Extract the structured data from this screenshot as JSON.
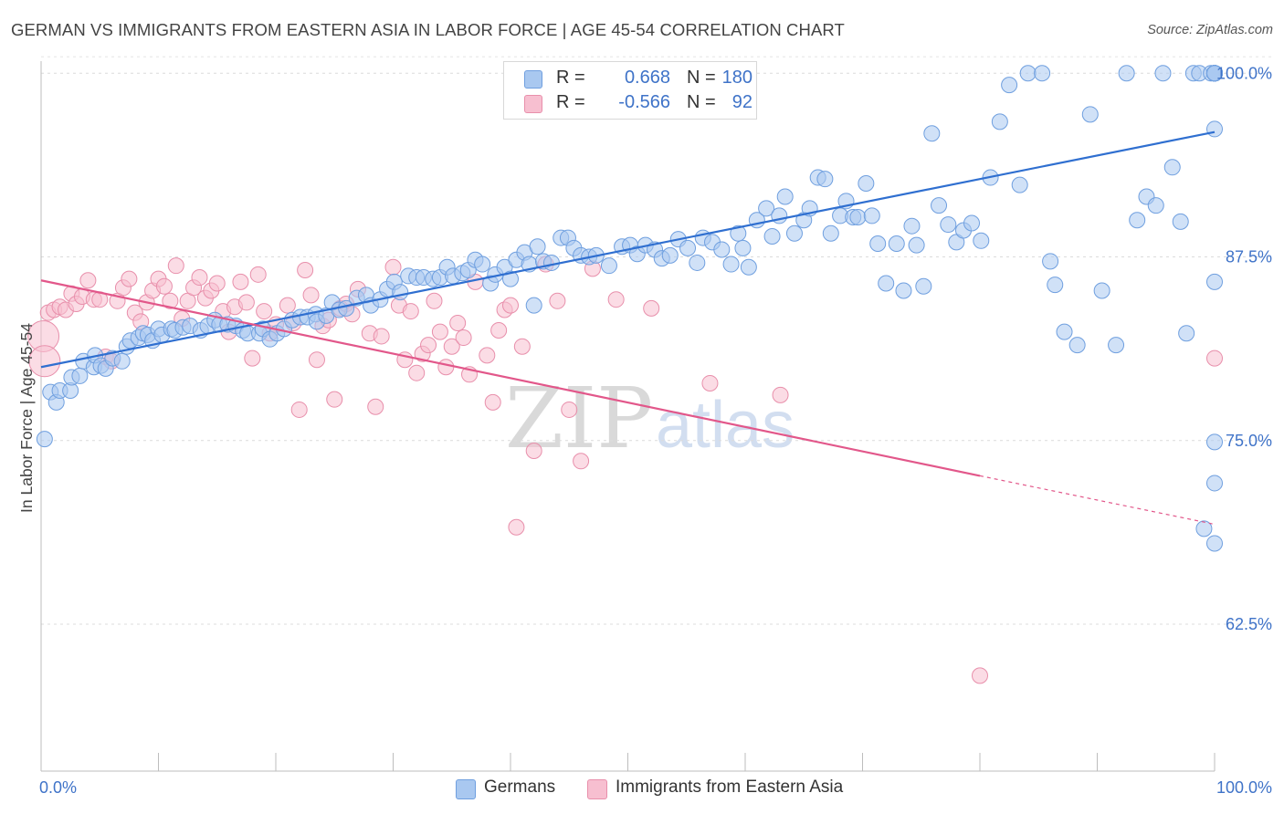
{
  "header": {
    "title": "GERMAN VS IMMIGRANTS FROM EASTERN ASIA IN LABOR FORCE | AGE 45-54 CORRELATION CHART",
    "source": "Source: ZipAtlas.com"
  },
  "watermark": {
    "zip": "ZIP",
    "atlas": "atlas"
  },
  "legend": {
    "rows": [
      {
        "r_label": "R =",
        "r_value": "0.668",
        "n_label": "N =",
        "n_value": "180",
        "color": "#a9c8f0",
        "border": "#6f9fdf"
      },
      {
        "r_label": "R =",
        "r_value": "-0.566",
        "n_label": "N =",
        "n_value": "92",
        "color": "#f7bfd0",
        "border": "#e88fab"
      }
    ]
  },
  "bottom_legend": {
    "germans": "Germans",
    "immigrants": "Immigrants from Eastern Asia"
  },
  "chart_data": {
    "type": "scatter",
    "title": "GERMAN VS IMMIGRANTS FROM EASTERN ASIA IN LABOR FORCE | AGE 45-54 CORRELATION CHART",
    "ylabel": "In Labor Force | Age 45-54",
    "xlabel": "",
    "xlim": [
      0,
      100
    ],
    "ylim": [
      52.5,
      102.5
    ],
    "y_ticks": [
      {
        "value": 100.0,
        "label": "100.0%"
      },
      {
        "value": 87.5,
        "label": "87.5%"
      },
      {
        "value": 75.0,
        "label": "75.0%"
      },
      {
        "value": 62.5,
        "label": "62.5%"
      }
    ],
    "x_tick_labels": {
      "left": "0.0%",
      "right": "100.0%"
    },
    "grid": "dashed horizontal",
    "legend_placement": "top-center",
    "colors": {
      "germans_fill": "#a9c8f0",
      "germans_stroke": "#6f9fdf",
      "germans_line": "#2f6fd0",
      "immigrants_fill": "#f7bfd0",
      "immigrants_stroke": "#e88fab",
      "immigrants_line": "#e2578a",
      "axis_text": "#3f73c8"
    },
    "series": [
      {
        "name": "Germans",
        "r": 0.668,
        "n": 180,
        "trend": {
          "x": [
            0,
            100
          ],
          "y": [
            80.0,
            96.0
          ]
        },
        "points": [
          [
            0.3,
            75.1
          ],
          [
            0.8,
            78.3
          ],
          [
            1.3,
            77.6
          ],
          [
            1.6,
            78.4
          ],
          [
            2.5,
            78.4
          ],
          [
            2.6,
            79.3
          ],
          [
            3.3,
            79.4
          ],
          [
            3.6,
            80.4
          ],
          [
            4.5,
            80.0
          ],
          [
            4.6,
            80.8
          ],
          [
            5.1,
            80.1
          ],
          [
            5.5,
            79.9
          ],
          [
            6.1,
            80.6
          ],
          [
            6.9,
            80.4
          ],
          [
            7.3,
            81.4
          ],
          [
            7.6,
            81.8
          ],
          [
            8.3,
            82.0
          ],
          [
            8.7,
            82.3
          ],
          [
            9.1,
            82.2
          ],
          [
            9.5,
            81.8
          ],
          [
            10.0,
            82.6
          ],
          [
            10.3,
            82.2
          ],
          [
            11.1,
            82.6
          ],
          [
            11.4,
            82.5
          ],
          [
            12.1,
            82.7
          ],
          [
            12.7,
            82.8
          ],
          [
            13.6,
            82.5
          ],
          [
            14.2,
            82.8
          ],
          [
            14.8,
            83.2
          ],
          [
            15.2,
            82.9
          ],
          [
            15.9,
            82.9
          ],
          [
            16.6,
            82.8
          ],
          [
            17.2,
            82.5
          ],
          [
            17.6,
            82.3
          ],
          [
            18.6,
            82.3
          ],
          [
            18.9,
            82.6
          ],
          [
            19.5,
            81.9
          ],
          [
            20.1,
            82.3
          ],
          [
            20.7,
            82.6
          ],
          [
            21.4,
            83.2
          ],
          [
            22.1,
            83.4
          ],
          [
            22.7,
            83.4
          ],
          [
            23.4,
            83.6
          ],
          [
            23.5,
            83.1
          ],
          [
            24.3,
            83.5
          ],
          [
            24.8,
            84.4
          ],
          [
            25.4,
            83.9
          ],
          [
            26.0,
            84.0
          ],
          [
            26.9,
            84.7
          ],
          [
            27.7,
            84.9
          ],
          [
            28.1,
            84.2
          ],
          [
            28.9,
            84.6
          ],
          [
            29.5,
            85.3
          ],
          [
            30.1,
            85.8
          ],
          [
            30.6,
            85.1
          ],
          [
            31.3,
            86.2
          ],
          [
            32.0,
            86.1
          ],
          [
            32.6,
            86.1
          ],
          [
            33.4,
            86.0
          ],
          [
            34.0,
            86.1
          ],
          [
            34.6,
            86.8
          ],
          [
            35.1,
            86.2
          ],
          [
            35.9,
            86.4
          ],
          [
            36.4,
            86.6
          ],
          [
            37.0,
            87.3
          ],
          [
            37.6,
            87.0
          ],
          [
            38.3,
            85.7
          ],
          [
            38.7,
            86.3
          ],
          [
            39.5,
            86.8
          ],
          [
            40.0,
            86.0
          ],
          [
            40.5,
            87.3
          ],
          [
            41.2,
            87.8
          ],
          [
            41.6,
            87.0
          ],
          [
            42.0,
            84.2
          ],
          [
            42.3,
            88.2
          ],
          [
            42.8,
            87.2
          ],
          [
            43.5,
            87.1
          ],
          [
            44.3,
            88.8
          ],
          [
            44.9,
            88.8
          ],
          [
            45.4,
            88.1
          ],
          [
            46.0,
            87.6
          ],
          [
            46.7,
            87.5
          ],
          [
            47.3,
            87.6
          ],
          [
            48.4,
            86.9
          ],
          [
            49.5,
            88.2
          ],
          [
            50.2,
            88.3
          ],
          [
            50.8,
            87.7
          ],
          [
            51.5,
            88.3
          ],
          [
            52.3,
            88.0
          ],
          [
            52.9,
            87.4
          ],
          [
            53.6,
            87.6
          ],
          [
            54.3,
            88.7
          ],
          [
            55.1,
            88.1
          ],
          [
            55.9,
            87.1
          ],
          [
            56.4,
            88.8
          ],
          [
            57.2,
            88.5
          ],
          [
            58.0,
            88.0
          ],
          [
            58.8,
            87.0
          ],
          [
            59.4,
            89.1
          ],
          [
            59.8,
            88.1
          ],
          [
            60.3,
            86.8
          ],
          [
            61.0,
            90.0
          ],
          [
            61.8,
            90.8
          ],
          [
            62.3,
            88.9
          ],
          [
            62.9,
            90.3
          ],
          [
            63.4,
            91.6
          ],
          [
            64.2,
            89.1
          ],
          [
            65.0,
            90.0
          ],
          [
            65.5,
            90.8
          ],
          [
            66.2,
            92.9
          ],
          [
            66.8,
            92.8
          ],
          [
            67.3,
            89.1
          ],
          [
            68.1,
            90.3
          ],
          [
            68.6,
            91.3
          ],
          [
            69.2,
            90.2
          ],
          [
            69.6,
            90.2
          ],
          [
            70.3,
            92.5
          ],
          [
            70.8,
            90.3
          ],
          [
            71.3,
            88.4
          ],
          [
            72.0,
            85.7
          ],
          [
            72.9,
            88.4
          ],
          [
            73.5,
            85.2
          ],
          [
            74.2,
            89.6
          ],
          [
            74.6,
            88.3
          ],
          [
            75.2,
            85.5
          ],
          [
            75.9,
            95.9
          ],
          [
            76.5,
            91.0
          ],
          [
            77.3,
            89.7
          ],
          [
            78.0,
            88.5
          ],
          [
            78.6,
            89.3
          ],
          [
            79.3,
            89.8
          ],
          [
            80.1,
            88.6
          ],
          [
            80.9,
            92.9
          ],
          [
            81.7,
            96.7
          ],
          [
            82.5,
            99.2
          ],
          [
            83.4,
            92.4
          ],
          [
            84.1,
            100.0
          ],
          [
            85.3,
            100.0
          ],
          [
            86.0,
            87.2
          ],
          [
            86.4,
            85.6
          ],
          [
            87.2,
            82.4
          ],
          [
            88.3,
            81.5
          ],
          [
            89.4,
            97.2
          ],
          [
            90.4,
            85.2
          ],
          [
            91.6,
            81.5
          ],
          [
            92.5,
            100.0
          ],
          [
            93.4,
            90.0
          ],
          [
            94.2,
            91.6
          ],
          [
            95.0,
            91.0
          ],
          [
            95.6,
            100.0
          ],
          [
            96.4,
            93.6
          ],
          [
            97.1,
            89.9
          ],
          [
            97.6,
            82.3
          ],
          [
            98.2,
            100.0
          ],
          [
            98.7,
            100.0
          ],
          [
            99.1,
            69.0
          ],
          [
            99.7,
            100.0
          ],
          [
            100.0,
            100.0
          ],
          [
            100.0,
            100.0
          ],
          [
            100.0,
            100.0
          ],
          [
            100.0,
            100.0
          ],
          [
            100.0,
            100.0
          ],
          [
            100.0,
            96.2
          ],
          [
            100.0,
            100.0
          ],
          [
            100.0,
            100.0
          ],
          [
            100.0,
            100.0
          ],
          [
            100.0,
            100.0
          ],
          [
            100.0,
            100.0
          ],
          [
            100.0,
            100.0
          ],
          [
            100.0,
            100.0
          ],
          [
            100.0,
            100.0
          ],
          [
            100.0,
            100.0
          ],
          [
            100.0,
            100.0
          ],
          [
            100.0,
            100.0
          ],
          [
            100.0,
            100.0
          ],
          [
            100.0,
            100.0
          ],
          [
            100.0,
            100.0
          ],
          [
            100.0,
            85.8
          ],
          [
            100.0,
            100.0
          ],
          [
            100.0,
            74.9
          ],
          [
            100.0,
            72.1
          ],
          [
            100.0,
            68.0
          ],
          [
            100.0,
            100.0
          ],
          [
            100.0,
            100.0
          ],
          [
            100.0,
            100.0
          ],
          [
            100.0,
            100.0
          ],
          [
            100.0,
            100.0
          ],
          [
            100.0,
            100.0
          ],
          [
            100.0,
            100.0
          ]
        ]
      },
      {
        "name": "Immigrants from Eastern Asia",
        "r": -0.566,
        "n": 92,
        "trend": {
          "x": [
            0,
            80
          ],
          "y": [
            85.9,
            72.6
          ]
        },
        "trend_dashed": {
          "x": [
            80,
            100
          ],
          "y": [
            72.6,
            69.3
          ]
        },
        "points": [
          [
            0.2,
            82.1
          ],
          [
            0.3,
            80.4
          ],
          [
            0.6,
            83.7
          ],
          [
            1.1,
            83.9
          ],
          [
            1.6,
            84.1
          ],
          [
            2.1,
            83.9
          ],
          [
            2.6,
            85.0
          ],
          [
            3.0,
            84.3
          ],
          [
            3.5,
            84.8
          ],
          [
            4.0,
            85.9
          ],
          [
            4.5,
            84.6
          ],
          [
            5.0,
            84.6
          ],
          [
            5.5,
            80.7
          ],
          [
            6.0,
            80.4
          ],
          [
            6.5,
            84.5
          ],
          [
            7.0,
            85.4
          ],
          [
            7.5,
            86.0
          ],
          [
            8.0,
            83.7
          ],
          [
            8.5,
            83.1
          ],
          [
            9.0,
            84.4
          ],
          [
            9.5,
            85.2
          ],
          [
            10.0,
            86.0
          ],
          [
            10.5,
            85.5
          ],
          [
            11.0,
            84.5
          ],
          [
            11.5,
            86.9
          ],
          [
            12.0,
            83.3
          ],
          [
            12.5,
            84.5
          ],
          [
            13.0,
            85.4
          ],
          [
            13.5,
            86.1
          ],
          [
            14.0,
            84.7
          ],
          [
            14.5,
            85.2
          ],
          [
            15.0,
            85.7
          ],
          [
            15.5,
            83.8
          ],
          [
            16.0,
            82.4
          ],
          [
            16.5,
            84.1
          ],
          [
            17.0,
            85.8
          ],
          [
            17.5,
            84.4
          ],
          [
            18.0,
            80.6
          ],
          [
            18.5,
            86.3
          ],
          [
            19.0,
            83.8
          ],
          [
            19.5,
            82.3
          ],
          [
            20.0,
            82.9
          ],
          [
            21.0,
            84.2
          ],
          [
            21.5,
            83.0
          ],
          [
            22.0,
            77.1
          ],
          [
            22.5,
            86.6
          ],
          [
            23.0,
            84.9
          ],
          [
            23.5,
            80.5
          ],
          [
            24.0,
            82.8
          ],
          [
            24.5,
            83.2
          ],
          [
            25.0,
            77.8
          ],
          [
            25.5,
            84.0
          ],
          [
            26.0,
            84.3
          ],
          [
            26.5,
            83.6
          ],
          [
            27.0,
            85.3
          ],
          [
            28.0,
            82.3
          ],
          [
            28.5,
            77.3
          ],
          [
            29.0,
            82.1
          ],
          [
            30.0,
            86.8
          ],
          [
            30.5,
            84.2
          ],
          [
            31.0,
            80.5
          ],
          [
            31.5,
            83.8
          ],
          [
            32.0,
            79.6
          ],
          [
            32.5,
            80.9
          ],
          [
            33.0,
            81.5
          ],
          [
            33.5,
            84.5
          ],
          [
            34.0,
            82.4
          ],
          [
            34.5,
            80.0
          ],
          [
            35.0,
            81.4
          ],
          [
            35.5,
            83.0
          ],
          [
            36.0,
            82.0
          ],
          [
            36.5,
            79.5
          ],
          [
            37.0,
            85.8
          ],
          [
            38.0,
            80.8
          ],
          [
            38.5,
            77.6
          ],
          [
            39.0,
            82.5
          ],
          [
            39.5,
            83.9
          ],
          [
            40.0,
            84.2
          ],
          [
            40.5,
            69.1
          ],
          [
            41.0,
            81.4
          ],
          [
            42.0,
            74.3
          ],
          [
            43.0,
            87.0
          ],
          [
            44.0,
            84.5
          ],
          [
            45.0,
            77.1
          ],
          [
            46.0,
            73.6
          ],
          [
            47.0,
            86.7
          ],
          [
            49.0,
            84.6
          ],
          [
            52.0,
            84.0
          ],
          [
            57.0,
            78.9
          ],
          [
            63.0,
            78.1
          ],
          [
            80.0,
            59.0
          ],
          [
            100.0,
            80.6
          ]
        ]
      }
    ]
  }
}
